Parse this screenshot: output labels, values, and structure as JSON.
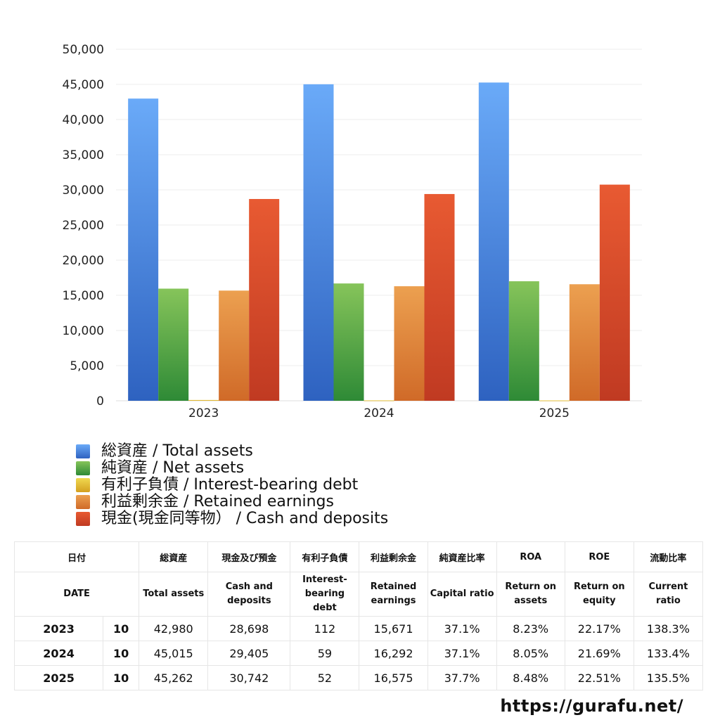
{
  "chart_data": {
    "type": "bar",
    "categories": [
      "2023",
      "2024",
      "2025"
    ],
    "ylim": [
      0,
      50000
    ],
    "yticks": [
      "0",
      "5,000",
      "10,000",
      "15,000",
      "20,000",
      "25,000",
      "30,000",
      "35,000",
      "40,000",
      "45,000",
      "50,000"
    ],
    "grid": true,
    "legend_position": "bottom",
    "series": [
      {
        "name": "総資産 / Total assets",
        "values": [
          42980,
          45015,
          45262
        ],
        "color": "#4a8ee8",
        "color_dark": "#2e62c0",
        "color_light": "#6aaaf8"
      },
      {
        "name": "純資産 / Net assets",
        "values": [
          15950,
          16686,
          17000
        ],
        "color": "#5aa84a",
        "color_dark": "#2e8a36",
        "color_light": "#86c45a"
      },
      {
        "name": "有利子負債 / Interest-bearing debt",
        "values": [
          112,
          59,
          52
        ],
        "color": "#e8c030",
        "color_dark": "#d4a020",
        "color_light": "#f0d850"
      },
      {
        "name": "利益剰余金 / Retained earnings",
        "values": [
          15671,
          16292,
          16575
        ],
        "color": "#e08a3a",
        "color_dark": "#d06a28",
        "color_light": "#eca050"
      },
      {
        "name": "現金(現金同等物） /  Cash and deposits",
        "values": [
          28698,
          29405,
          30742
        ],
        "color": "#d84a2a",
        "color_dark": "#c03a22",
        "color_light": "#e85a32"
      }
    ]
  },
  "table": {
    "header_jp": [
      "日付",
      "総資産",
      "現金及び預金",
      "有利子負債",
      "利益剰余金",
      "純資産比率",
      "ROA",
      "ROE",
      "流動比率"
    ],
    "header_en": [
      "DATE",
      "Total assets",
      "Cash and deposits",
      "Interest-bearing debt",
      "Retained earnings",
      "Capital ratio",
      "Return on assets",
      "Return on equity",
      "Current ratio"
    ],
    "rows": [
      {
        "year": "2023",
        "month": "10",
        "total_assets": "42,980",
        "cash": "28,698",
        "debt": "112",
        "retained": "15,671",
        "capital_ratio": "37.1%",
        "roa": "8.23%",
        "roe": "22.17%",
        "current_ratio": "138.3%"
      },
      {
        "year": "2024",
        "month": "10",
        "total_assets": "45,015",
        "cash": "29,405",
        "debt": "59",
        "retained": "16,292",
        "capital_ratio": "37.1%",
        "roa": "8.05%",
        "roe": "21.69%",
        "current_ratio": "133.4%"
      },
      {
        "year": "2025",
        "month": "10",
        "total_assets": "45,262",
        "cash": "30,742",
        "debt": "52",
        "retained": "16,575",
        "capital_ratio": "37.7%",
        "roa": "8.48%",
        "roe": "22.51%",
        "current_ratio": "135.5%"
      }
    ]
  },
  "footer": {
    "url": "https://gurafu.net/"
  }
}
